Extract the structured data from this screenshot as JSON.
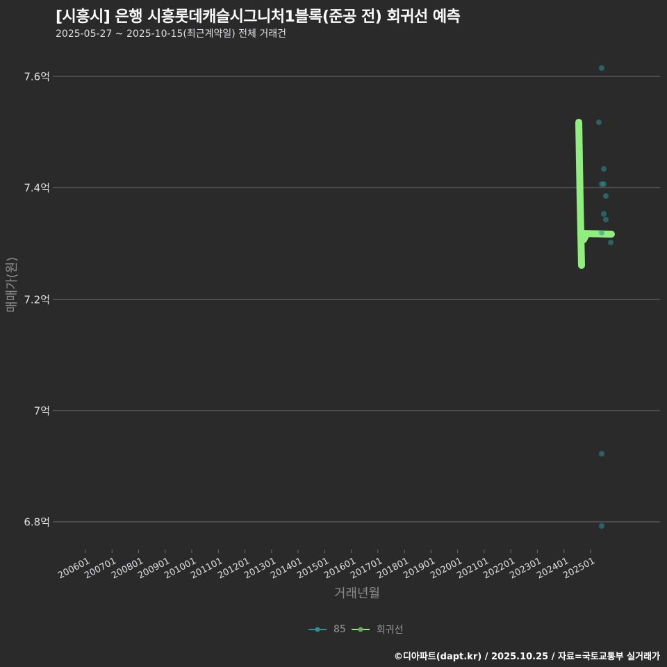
{
  "header": {
    "title": "[시흥시] 은행 시흥롯데캐슬시그니처1블록(준공 전) 회귀선 예측",
    "subtitle": "2025-05-27 ~ 2025-10-15(최근계약일) 전체 거래건"
  },
  "axes": {
    "ylabel": "매매가(원)",
    "xlabel": "거래년월",
    "yticks": [
      "7.6억",
      "7.4억",
      "7.2억",
      "7억",
      "6.8억"
    ],
    "xticks": [
      "200601",
      "200701",
      "200801",
      "200901",
      "201001",
      "201101",
      "201201",
      "201301",
      "201401",
      "201501",
      "201601",
      "201701",
      "201801",
      "201901",
      "202001",
      "202101",
      "202201",
      "202301",
      "202401",
      "202501"
    ]
  },
  "legend": {
    "items": [
      {
        "label": "85",
        "color": "#2b908f"
      },
      {
        "label": "회귀선",
        "color": "#90ee7e"
      }
    ]
  },
  "footer": {
    "credit": "©디아파트(dapt.kr) / 2025.10.25 / 자료=국토교통부 실거래가"
  },
  "colors": {
    "background": "#2a2a2b",
    "grid": "#707073",
    "scatter": "#2b908f",
    "regression": "#90ee7e"
  },
  "chart_data": {
    "type": "scatter",
    "title": "[시흥시] 은행 시흥롯데캐슬시그니처1블록(준공 전) 회귀선 예측",
    "subtitle": "2025-05-27 ~ 2025-10-15(최근계약일) 전체 거래건",
    "xlabel": "거래년월",
    "ylabel": "매매가(원)",
    "ylim": [
      6.77,
      7.64
    ],
    "y_unit": "억",
    "grid": true,
    "legend_position": "bottom",
    "categories": [
      "200601",
      "200701",
      "200801",
      "200901",
      "201001",
      "201101",
      "201201",
      "201301",
      "201401",
      "201501",
      "201601",
      "201701",
      "201801",
      "201901",
      "202001",
      "202101",
      "202201",
      "202301",
      "202401",
      "202501"
    ],
    "series": [
      {
        "name": "85",
        "type": "scatter",
        "points": [
          {
            "x": "2025-06",
            "y": 7.615
          },
          {
            "x": "2025-05",
            "y": 7.52
          },
          {
            "x": "2025-07",
            "y": 7.435
          },
          {
            "x": "2025-06",
            "y": 7.405
          },
          {
            "x": "2025-07",
            "y": 7.405
          },
          {
            "x": "2025-07",
            "y": 7.385
          },
          {
            "x": "2025-07",
            "y": 7.355
          },
          {
            "x": "2025-07",
            "y": 7.345
          },
          {
            "x": "2025-06",
            "y": 7.32
          },
          {
            "x": "2025-10",
            "y": 7.3
          },
          {
            "x": "2025-06",
            "y": 6.925
          },
          {
            "x": "2025-06",
            "y": 6.79
          }
        ]
      },
      {
        "name": "회귀선",
        "type": "line",
        "points": [
          {
            "x": "2024-09",
            "y": 7.52
          },
          {
            "x": "2024-10",
            "y": 7.26
          },
          {
            "x": "2024-11",
            "y": 7.315
          },
          {
            "x": "2025-10",
            "y": 7.315
          }
        ]
      }
    ]
  }
}
